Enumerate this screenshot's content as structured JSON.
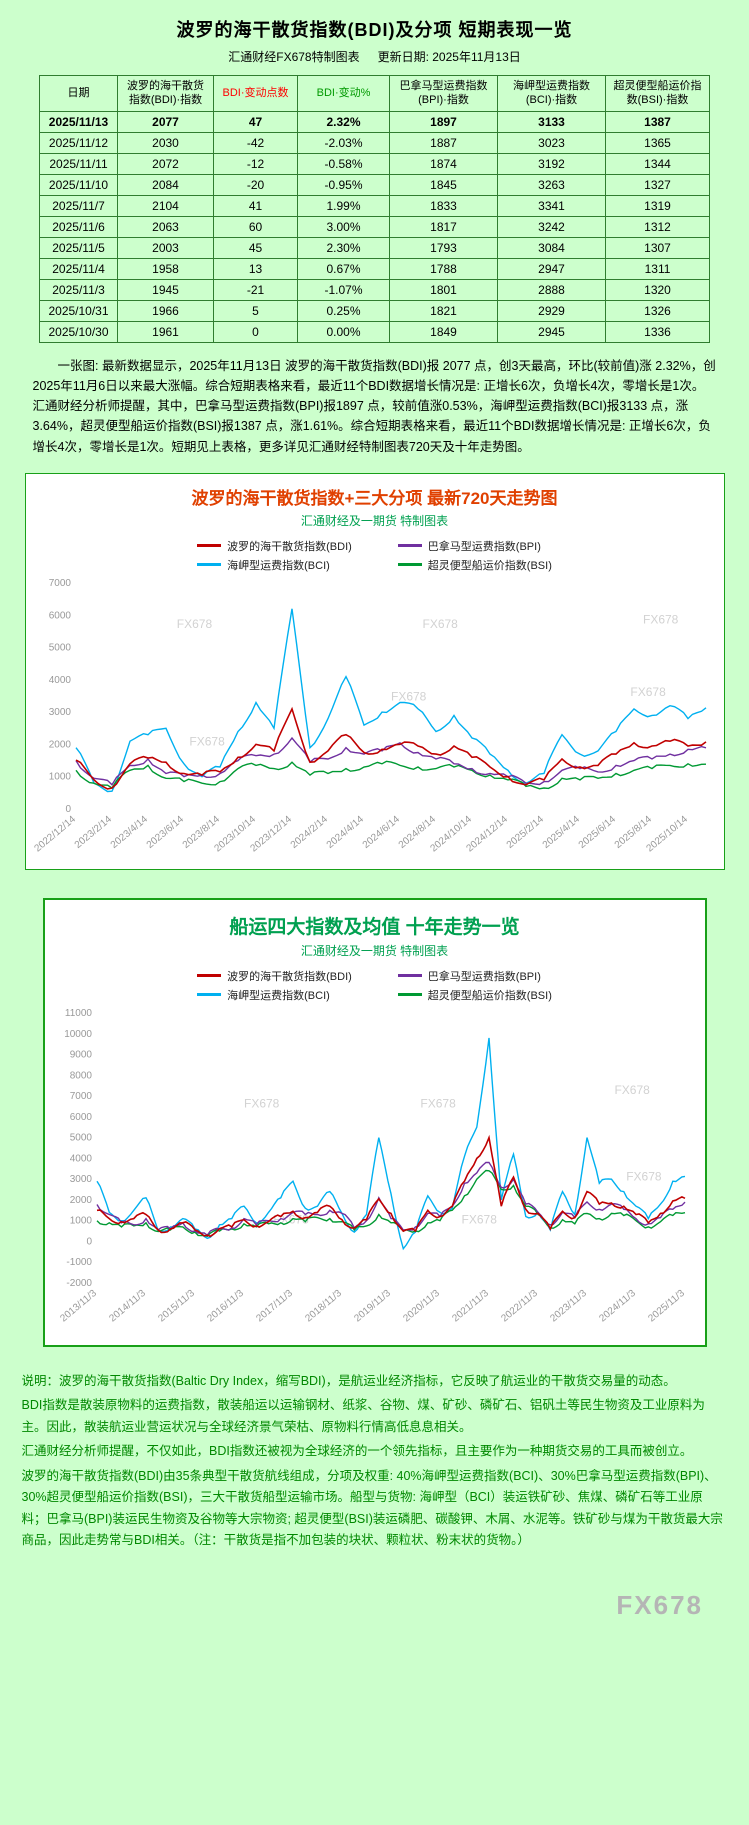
{
  "table_section": {
    "title": "波罗的海干散货指数(BDI)及分项 短期表现一览",
    "subtitle_left": "汇通财经FX678特制图表",
    "subtitle_right": "更新日期: 2025年11月13日",
    "headers": [
      "日期",
      "波罗的海干散货指数(BDI)·指数",
      "BDI·变动点数",
      "BDI·变动%",
      "巴拿马型运费指数(BPI)·指数",
      "海岬型运费指数(BCI)·指数",
      "超灵便型船运价指数(BSI)·指数"
    ],
    "header_colors": {
      "change_points": "#ff0000",
      "change_pct": "#009900"
    },
    "rows": [
      [
        "2025/11/13",
        "2077",
        "47",
        "2.32%",
        "1897",
        "3133",
        "1387"
      ],
      [
        "2025/11/12",
        "2030",
        "-42",
        "-2.03%",
        "1887",
        "3023",
        "1365"
      ],
      [
        "2025/11/11",
        "2072",
        "-12",
        "-0.58%",
        "1874",
        "3192",
        "1344"
      ],
      [
        "2025/11/10",
        "2084",
        "-20",
        "-0.95%",
        "1845",
        "3263",
        "1327"
      ],
      [
        "2025/11/7",
        "2104",
        "41",
        "1.99%",
        "1833",
        "3341",
        "1319"
      ],
      [
        "2025/11/6",
        "2063",
        "60",
        "3.00%",
        "1817",
        "3242",
        "1312"
      ],
      [
        "2025/11/5",
        "2003",
        "45",
        "2.30%",
        "1793",
        "3084",
        "1307"
      ],
      [
        "2025/11/4",
        "1958",
        "13",
        "0.67%",
        "1788",
        "2947",
        "1311"
      ],
      [
        "2025/11/3",
        "1945",
        "-21",
        "-1.07%",
        "1801",
        "2888",
        "1320"
      ],
      [
        "2025/10/31",
        "1966",
        "5",
        "0.25%",
        "1821",
        "2929",
        "1326"
      ],
      [
        "2025/10/30",
        "1961",
        "0",
        "0.00%",
        "1849",
        "2945",
        "1336"
      ]
    ],
    "note": "一张图: 最新数据显示，2025年11月13日 波罗的海干散货指数(BDI)报 2077 点，创3天最高，环比(较前值)涨 2.32%，创2025年11月6日以来最大涨幅。综合短期表格来看，最近11个BDI数据增长情况是: 正增长6次，负增长4次，零增长是1次。汇通财经分析师提醒，其中，巴拿马型运费指数(BPI)报1897 点，较前值涨0.53%，海岬型运费指数(BCI)报3133 点，涨3.64%，超灵便型船运价指数(BSI)报1387 点，涨1.61%。综合短期表格来看，最近11个BDI数据增长情况是: 正增长6次，负增长4次，零增长是1次。短期见上表格，更多详见汇通财经特制图表720天及十年走势图。"
  },
  "chart_data": [
    {
      "type": "line",
      "title": "波罗的海干散货指数+三大分项  最新720天走势图",
      "subtitle": "汇通财经及一期货 特制图表",
      "title_color": "#e04000",
      "subtitle_color": "#00a050",
      "ylim": [
        0,
        7000
      ],
      "ytick": 1000,
      "xstep": 2,
      "wiggle": 0.013,
      "watermark_text": "FX678",
      "watermarks": [
        [
          0.16,
          0.2
        ],
        [
          0.55,
          0.2
        ],
        [
          0.9,
          0.18
        ],
        [
          0.5,
          0.52
        ],
        [
          0.18,
          0.72
        ],
        [
          0.88,
          0.5
        ]
      ],
      "xlabels": [
        "2022/12/14",
        "2023/2/14",
        "2023/4/14",
        "2023/6/14",
        "2023/8/14",
        "2023/10/14",
        "2023/12/14",
        "2024/2/14",
        "2024/4/14",
        "2024/6/14",
        "2024/8/14",
        "2024/10/14",
        "2024/12/14",
        "2025/2/14",
        "2025/4/14",
        "2025/6/14",
        "2025/8/14",
        "2025/10/14"
      ],
      "series": [
        {
          "name": "波罗的海干散货指数(BDI)",
          "color": "#c00000",
          "w": 1.6,
          "values": [
            1515,
            900,
            650,
            1400,
            1580,
            1450,
            1100,
            1050,
            1150,
            1600,
            2000,
            1800,
            3100,
            1450,
            1800,
            2300,
            1750,
            1850,
            2000,
            1950,
            1700,
            1950,
            1600,
            1300,
            1000,
            750,
            900,
            1550,
            1300,
            1350,
            1700,
            2050,
            1950,
            2100,
            1950,
            2077
          ]
        },
        {
          "name": "巴拿马型运费指数(BPI)",
          "color": "#7030a0",
          "w": 1.4,
          "values": [
            1500,
            950,
            750,
            1350,
            1550,
            1100,
            1000,
            1050,
            1100,
            1500,
            1650,
            1700,
            2200,
            1450,
            1550,
            1900,
            1700,
            1800,
            2050,
            1750,
            1550,
            1400,
            1250,
            1100,
            1000,
            800,
            850,
            1200,
            1250,
            1150,
            1350,
            1500,
            1550,
            1700,
            1850,
            1897
          ]
        },
        {
          "name": "海岬型运费指数(BCI)",
          "color": "#00b0f0",
          "w": 1.4,
          "values": [
            1900,
            800,
            550,
            2100,
            2300,
            2500,
            1400,
            1000,
            1300,
            2400,
            3300,
            2500,
            6200,
            1900,
            2800,
            4100,
            2600,
            3000,
            3300,
            3100,
            2400,
            2900,
            2200,
            1700,
            1200,
            800,
            1100,
            2300,
            1700,
            1800,
            2400,
            3100,
            2900,
            3200,
            2800,
            3133
          ]
        },
        {
          "name": "超灵便型船运价指数(BSI)",
          "color": "#009933",
          "w": 1.4,
          "values": [
            1200,
            800,
            650,
            1200,
            1350,
            950,
            850,
            800,
            850,
            1250,
            1350,
            1250,
            1450,
            1050,
            1100,
            1250,
            1300,
            1400,
            1350,
            1300,
            1250,
            1300,
            1200,
            1050,
            900,
            700,
            650,
            950,
            900,
            950,
            1100,
            1200,
            1250,
            1350,
            1400,
            1387
          ]
        }
      ],
      "draw_order": [
        2,
        3,
        1,
        0
      ]
    },
    {
      "type": "line",
      "title": "船运四大指数及均值 十年走势一览",
      "subtitle": "汇通财经及一期货 特制图表",
      "title_color": "#00a050",
      "subtitle_color": "#00a050",
      "ylim": [
        -2000,
        11000
      ],
      "ytick": 1000,
      "xstep": 4,
      "wiggle": 0.01,
      "watermark_text": "FX678",
      "watermarks": [
        [
          0.25,
          0.35
        ],
        [
          0.55,
          0.35
        ],
        [
          0.88,
          0.3
        ],
        [
          0.3,
          0.78
        ],
        [
          0.62,
          0.78
        ],
        [
          0.9,
          0.62
        ]
      ],
      "xlabels": [
        "2013/11/3",
        "2014/11/3",
        "2015/11/3",
        "2016/11/3",
        "2017/11/3",
        "2018/11/3",
        "2019/11/3",
        "2020/11/3",
        "2021/11/3",
        "2022/11/3",
        "2023/11/3",
        "2024/11/3",
        "2025/11/3"
      ],
      "series": [
        {
          "name": "波罗的海干散货指数(BDI)",
          "color": "#c00000",
          "w": 1.6,
          "values": [
            1500,
            1100,
            950,
            1100,
            1300,
            540,
            600,
            900,
            550,
            300,
            620,
            700,
            1050,
            750,
            950,
            1200,
            1450,
            1150,
            1400,
            1700,
            1050,
            650,
            1050,
            2050,
            1350,
            500,
            500,
            1500,
            1200,
            1700,
            2900,
            4000,
            5000,
            1700,
            3100,
            1550,
            1350,
            600,
            1450,
            1150,
            2400,
            1800,
            1850,
            1700,
            1300,
            900,
            1350,
            1950,
            2077
          ]
        },
        {
          "name": "巴拿马型运费指数(BPI)",
          "color": "#7030a0",
          "w": 1.4,
          "values": [
            1780,
            1300,
            900,
            800,
            1100,
            560,
            600,
            900,
            500,
            300,
            600,
            650,
            1100,
            800,
            1000,
            1100,
            1400,
            1300,
            1300,
            1500,
            1350,
            650,
            1000,
            2100,
            1100,
            550,
            700,
            1350,
            1200,
            1700,
            2800,
            3300,
            3800,
            2600,
            3000,
            1800,
            1400,
            800,
            1400,
            1150,
            1900,
            1550,
            1800,
            1550,
            1100,
            850,
            1150,
            1550,
            1897
          ]
        },
        {
          "name": "海岬型运费指数(BCI)",
          "color": "#00b0f0",
          "w": 1.4,
          "values": [
            2900,
            1400,
            1000,
            1500,
            2100,
            500,
            700,
            1100,
            600,
            150,
            800,
            1100,
            1700,
            900,
            1400,
            2100,
            2900,
            1600,
            1700,
            2400,
            1350,
            450,
            1300,
            5000,
            2300,
            -350,
            450,
            2200,
            1400,
            1600,
            4100,
            5500,
            9800,
            2000,
            4200,
            1200,
            1400,
            550,
            2400,
            1300,
            5000,
            2800,
            3000,
            2400,
            1700,
            1100,
            1800,
            2900,
            3133
          ]
        },
        {
          "name": "超灵便型船运价指数(BSI)",
          "color": "#009933",
          "w": 1.4,
          "values": [
            1000,
            900,
            700,
            750,
            900,
            480,
            550,
            700,
            450,
            250,
            500,
            600,
            850,
            700,
            850,
            900,
            1100,
            950,
            1150,
            1100,
            950,
            550,
            750,
            1300,
            900,
            500,
            500,
            900,
            1000,
            1500,
            2200,
            3000,
            3400,
            2500,
            2700,
            1700,
            1300,
            650,
            1050,
            850,
            1350,
            1100,
            1350,
            1250,
            1000,
            700,
            950,
            1250,
            1387
          ]
        }
      ],
      "draw_order": [
        2,
        3,
        1,
        0
      ]
    }
  ],
  "description": {
    "p1": "说明：波罗的海干散货指数(Baltic Dry Index，缩写BDI)，是航运业经济指标，它反映了航运业的干散货交易量的动态。",
    "p2": "BDI指数是散装原物料的运费指数，散装船运以运输钢材、纸浆、谷物、煤、矿砂、磷矿石、铝矾土等民生物资及工业原料为主。因此，散装航运业营运状况与全球经济景气荣枯、原物料行情高低息息相关。",
    "p3": "汇通财经分析师提醒，不仅如此，BDI指数还被视为全球经济的一个领先指标，且主要作为一种期货交易的工具而被创立。",
    "p4": "波罗的海干散货指数(BDI)由35条典型干散货航线组成，分项及权重: 40%海岬型运费指数(BCI)、30%巴拿马型运费指数(BPI)、30%超灵便型船运价指数(BSI)，三大干散货船型运输市场。船型与货物: 海岬型（BCI）装运铁矿砂、焦煤、磷矿石等工业原料；巴拿马(BPI)装运民生物资及谷物等大宗物资; 超灵便型(BSI)装运磷肥、碳酸钾、木屑、水泥等。铁矿砂与煤为干散货最大宗商品，因此走势常与BDI相关。（注：干散货是指不加包装的块状、颗粒状、粉末状的货物。）"
  },
  "footer": {
    "watermark": "FX678"
  },
  "colors": {
    "page_bg": "#ccffcc",
    "table_border": "#2f7d2f",
    "card_border": "#18a018",
    "desc_text": "#008800",
    "watermark_gray": "#b5b5b5"
  }
}
